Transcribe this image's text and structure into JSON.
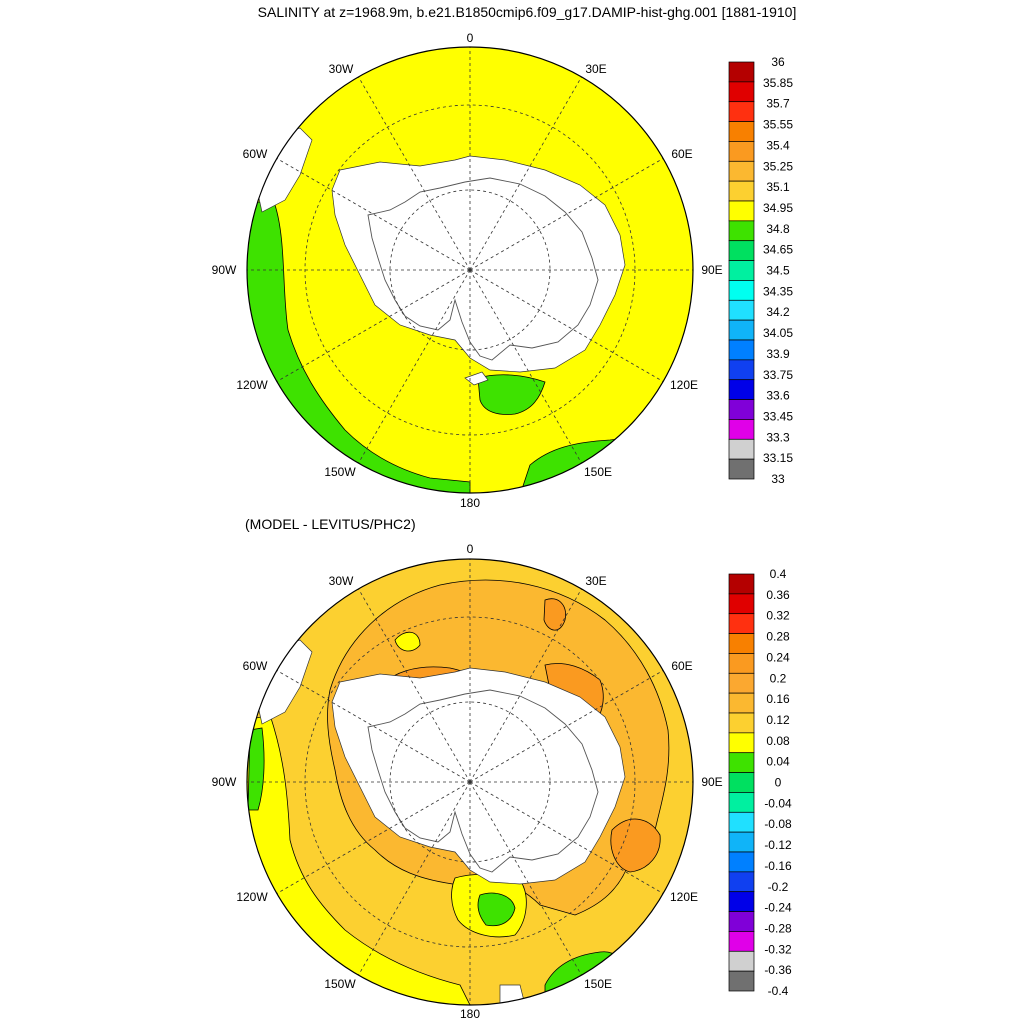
{
  "chart_data": [
    {
      "type": "heatmap",
      "projection": "south-polar-stereographic",
      "title": "SALINITY at z=1968.9m, b.e21.B1850cmip6.f09_g17.DAMIP-hist-ghg.001 [1881-1910]",
      "longitude_labels": [
        "0",
        "30E",
        "60E",
        "90E",
        "120E",
        "150E",
        "180",
        "150W",
        "120W",
        "90W",
        "60W",
        "30W"
      ],
      "colorbar": {
        "labels": [
          "36",
          "35.85",
          "35.7",
          "35.55",
          "35.4",
          "35.25",
          "35.1",
          "34.95",
          "34.8",
          "34.65",
          "34.5",
          "34.35",
          "34.2",
          "34.05",
          "33.9",
          "33.75",
          "33.6",
          "33.45",
          "33.3",
          "33.15",
          "33"
        ],
        "colors": [
          "#b40000",
          "#e00000",
          "#ff3010",
          "#f88000",
          "#fa9a20",
          "#fbb830",
          "#fcd030",
          "#ffff00",
          "#3ee200",
          "#00e060",
          "#00f0a0",
          "#00fff0",
          "#20e0ff",
          "#10b4f8",
          "#0080ff",
          "#1040f0",
          "#0000e8",
          "#8000d8",
          "#e000e8",
          "#d0d0d0",
          "#707070"
        ]
      },
      "regions": [
        {
          "name": "ocean-background",
          "value_range": [
            34.8,
            34.95
          ],
          "color": "#ffff00"
        },
        {
          "name": "pacific-periphery",
          "value_range": [
            34.65,
            34.8
          ],
          "color": "#3ee200"
        },
        {
          "name": "ross-sea-embayment",
          "value_range": [
            34.65,
            34.8
          ],
          "color": "#3ee200"
        }
      ]
    },
    {
      "type": "heatmap",
      "projection": "south-polar-stereographic",
      "title": "(MODEL - LEVITUS/PHC2)",
      "longitude_labels": [
        "0",
        "30E",
        "60E",
        "90E",
        "120E",
        "150E",
        "180",
        "150W",
        "120W",
        "90W",
        "60W",
        "30W"
      ],
      "colorbar": {
        "labels": [
          "0.4",
          "0.36",
          "0.32",
          "0.28",
          "0.24",
          "0.2",
          "0.16",
          "0.12",
          "0.08",
          "0.04",
          "0",
          "-0.04",
          "-0.08",
          "-0.12",
          "-0.16",
          "-0.2",
          "-0.24",
          "-0.28",
          "-0.32",
          "-0.36",
          "-0.4"
        ],
        "colors": [
          "#b40000",
          "#e00000",
          "#ff3010",
          "#f88000",
          "#fa9a20",
          "#fba830",
          "#fbb830",
          "#fcd030",
          "#ffff00",
          "#3ee200",
          "#00e060",
          "#00f0a0",
          "#20e0ff",
          "#10b4f8",
          "#0080ff",
          "#1040f0",
          "#0000e8",
          "#8000d8",
          "#e000e8",
          "#d0d0d0",
          "#707070"
        ]
      },
      "regions": [
        {
          "name": "ocean-background",
          "value_range": [
            0.12,
            0.16
          ],
          "color": "#fcd030"
        },
        {
          "name": "inner-ring",
          "value_range": [
            0.16,
            0.2
          ],
          "color": "#fbb830"
        },
        {
          "name": "shelf-maxima",
          "value_range": [
            0.2,
            0.24
          ],
          "color": "#fa9a20"
        },
        {
          "name": "low-anomaly-patches",
          "value_range": [
            0.08,
            0.12
          ],
          "color": "#ffff00"
        },
        {
          "name": "near-zero-patches",
          "value_range": [
            0.04,
            0.08
          ],
          "color": "#3ee200"
        }
      ]
    }
  ]
}
